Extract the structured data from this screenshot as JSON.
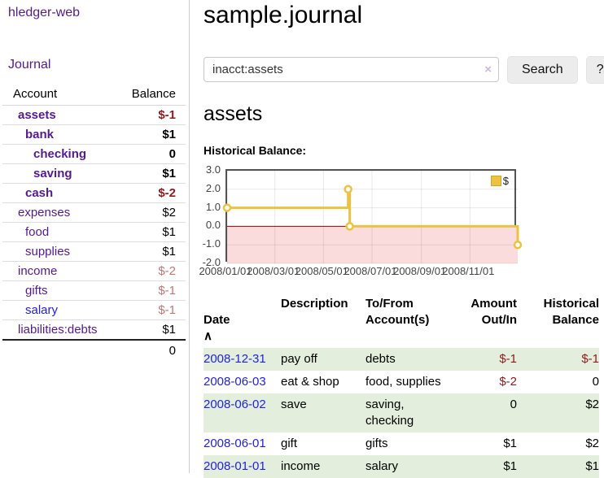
{
  "app": {
    "title": "hledger-web"
  },
  "colors": {
    "link_purple": "#551a8b",
    "link_blue": "#2222dd",
    "negative_strong": "#8b1c1c",
    "negative_light": "#bd7878",
    "row_green": "#e3efdc",
    "series_yellow": "#edc240"
  },
  "sidebar": {
    "journal_link": "Journal",
    "accounts_header": {
      "account": "Account",
      "balance": "Balance"
    },
    "accounts": [
      {
        "name": "assets",
        "level": 1,
        "bold": true,
        "balance": "$-1",
        "negative": "strong"
      },
      {
        "name": "bank",
        "level": 2,
        "bold": true,
        "balance": "$1"
      },
      {
        "name": "checking",
        "level": 3,
        "bold": true,
        "balance": "0"
      },
      {
        "name": "saving",
        "level": 3,
        "bold": true,
        "balance": "$1"
      },
      {
        "name": "cash",
        "level": 2,
        "bold": true,
        "balance": "$-2",
        "negative": "strong"
      },
      {
        "name": "expenses",
        "level": 1,
        "bold": false,
        "balance": "$2"
      },
      {
        "name": "food",
        "level": 2,
        "bold": false,
        "balance": "$1"
      },
      {
        "name": "supplies",
        "level": 2,
        "bold": false,
        "balance": "$1"
      },
      {
        "name": "income",
        "level": 1,
        "bold": false,
        "balance": "$-2",
        "negative": "light"
      },
      {
        "name": "gifts",
        "level": 2,
        "bold": false,
        "balance": "$-1",
        "negative": "light"
      },
      {
        "name": "salary",
        "level": 2,
        "bold": false,
        "balance": "$-1",
        "negative": "light",
        "link_color": "blue"
      },
      {
        "name": "liabilities:debts",
        "level": 1,
        "bold": false,
        "balance": "$1"
      }
    ],
    "total": "0"
  },
  "main": {
    "title": "sample.journal",
    "search": {
      "value": "inacct:assets",
      "clear_icon": "×",
      "button": "Search",
      "help_button": "?"
    },
    "account_heading": "assets",
    "chart_label": "Historical Balance:"
  },
  "chart_data": {
    "type": "line",
    "title": "Historical Balance",
    "step": true,
    "series": [
      {
        "name": "$",
        "color": "#edc240",
        "points": [
          {
            "x": "2008-01-01",
            "y": 1
          },
          {
            "x": "2008-06-01",
            "y": 2
          },
          {
            "x": "2008-06-03",
            "y": 0
          },
          {
            "x": "2008-12-31",
            "y": -1
          }
        ]
      }
    ],
    "x_range": [
      "2008-01-01",
      "2008-12-31"
    ],
    "ylim": [
      -2,
      3
    ],
    "x_ticks": [
      {
        "x": "2008-01-01",
        "label": "2008/01/01"
      },
      {
        "x": "2008-03-01",
        "label": "2008/03/01"
      },
      {
        "x": "2008-05-01",
        "label": "2008/05/01"
      },
      {
        "x": "2008-07-01",
        "label": "2008/07/01"
      },
      {
        "x": "2008-09-01",
        "label": "2008/09/01"
      },
      {
        "x": "2008-11-01",
        "label": "2008/11/01"
      }
    ],
    "y_ticks": [
      {
        "y": 3,
        "label": "3.0"
      },
      {
        "y": 2,
        "label": "2.0"
      },
      {
        "y": 1,
        "label": "1.0"
      },
      {
        "y": 0,
        "label": "0.0"
      },
      {
        "y": -1,
        "label": "-1.0"
      },
      {
        "y": -2,
        "label": "-2.0"
      }
    ],
    "grid": true,
    "negative_region_color": "#fbdcdc",
    "zero_line_color": "#990000",
    "legend": {
      "position": "top-right",
      "label": "$"
    }
  },
  "table": {
    "headers": {
      "date": "Date",
      "sort_icon": "∧",
      "description": "Description",
      "tofrom": "To/From\nAccount(s)",
      "amount": "Amount\nOut/In",
      "balance": "Historical\nBalance"
    },
    "rows": [
      {
        "date": "2008-12-31",
        "description": "pay off",
        "accounts_lines": [
          "debts"
        ],
        "amount": "$-1",
        "amount_negative": true,
        "balance": "$-1",
        "balance_negative": true
      },
      {
        "date": "2008-06-03",
        "description": "eat & shop",
        "accounts_lines": [
          "food, supplies"
        ],
        "amount": "$-2",
        "amount_negative": true,
        "balance": "0",
        "balance_negative": false
      },
      {
        "date": "2008-06-02",
        "description": "save",
        "accounts_lines": [
          "saving,",
          "checking"
        ],
        "amount": "0",
        "amount_negative": false,
        "balance": "$2",
        "balance_negative": false
      },
      {
        "date": "2008-06-01",
        "description": "gift",
        "accounts_lines": [
          "gifts"
        ],
        "amount": "$1",
        "amount_negative": false,
        "balance": "$2",
        "balance_negative": false
      },
      {
        "date": "2008-01-01",
        "description": "income",
        "accounts_lines": [
          "salary"
        ],
        "amount": "$1",
        "amount_negative": false,
        "balance": "$1",
        "balance_negative": false
      }
    ]
  }
}
